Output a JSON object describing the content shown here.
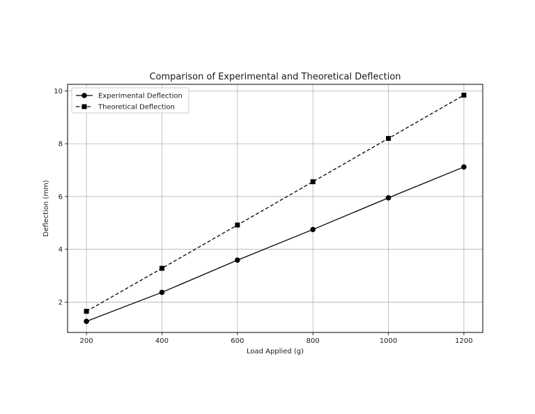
{
  "chart_data": {
    "type": "line",
    "title": "Comparison of Experimental and Theoretical Deflection",
    "xlabel": "Load Applied (g)",
    "ylabel": "Deflection (mm)",
    "x": [
      200,
      400,
      600,
      800,
      1000,
      1200
    ],
    "xticks": [
      "200",
      "400",
      "600",
      "800",
      "1000",
      "1200"
    ],
    "yticks": [
      "2",
      "4",
      "6",
      "8",
      "10"
    ],
    "xlim": [
      150,
      1250
    ],
    "ylim": [
      0.85,
      10.25
    ],
    "grid": true,
    "legend_position": "top-left",
    "series": [
      {
        "name": "Experimental Deflection",
        "values": [
          1.27,
          2.37,
          3.59,
          4.75,
          5.95,
          7.12
        ],
        "marker": "circle",
        "line_style": "solid",
        "color": "#000000"
      },
      {
        "name": "Theoretical Deflection",
        "values": [
          1.65,
          3.28,
          4.92,
          6.56,
          8.2,
          9.84
        ],
        "marker": "square",
        "line_style": "dashed",
        "color": "#000000"
      }
    ]
  }
}
